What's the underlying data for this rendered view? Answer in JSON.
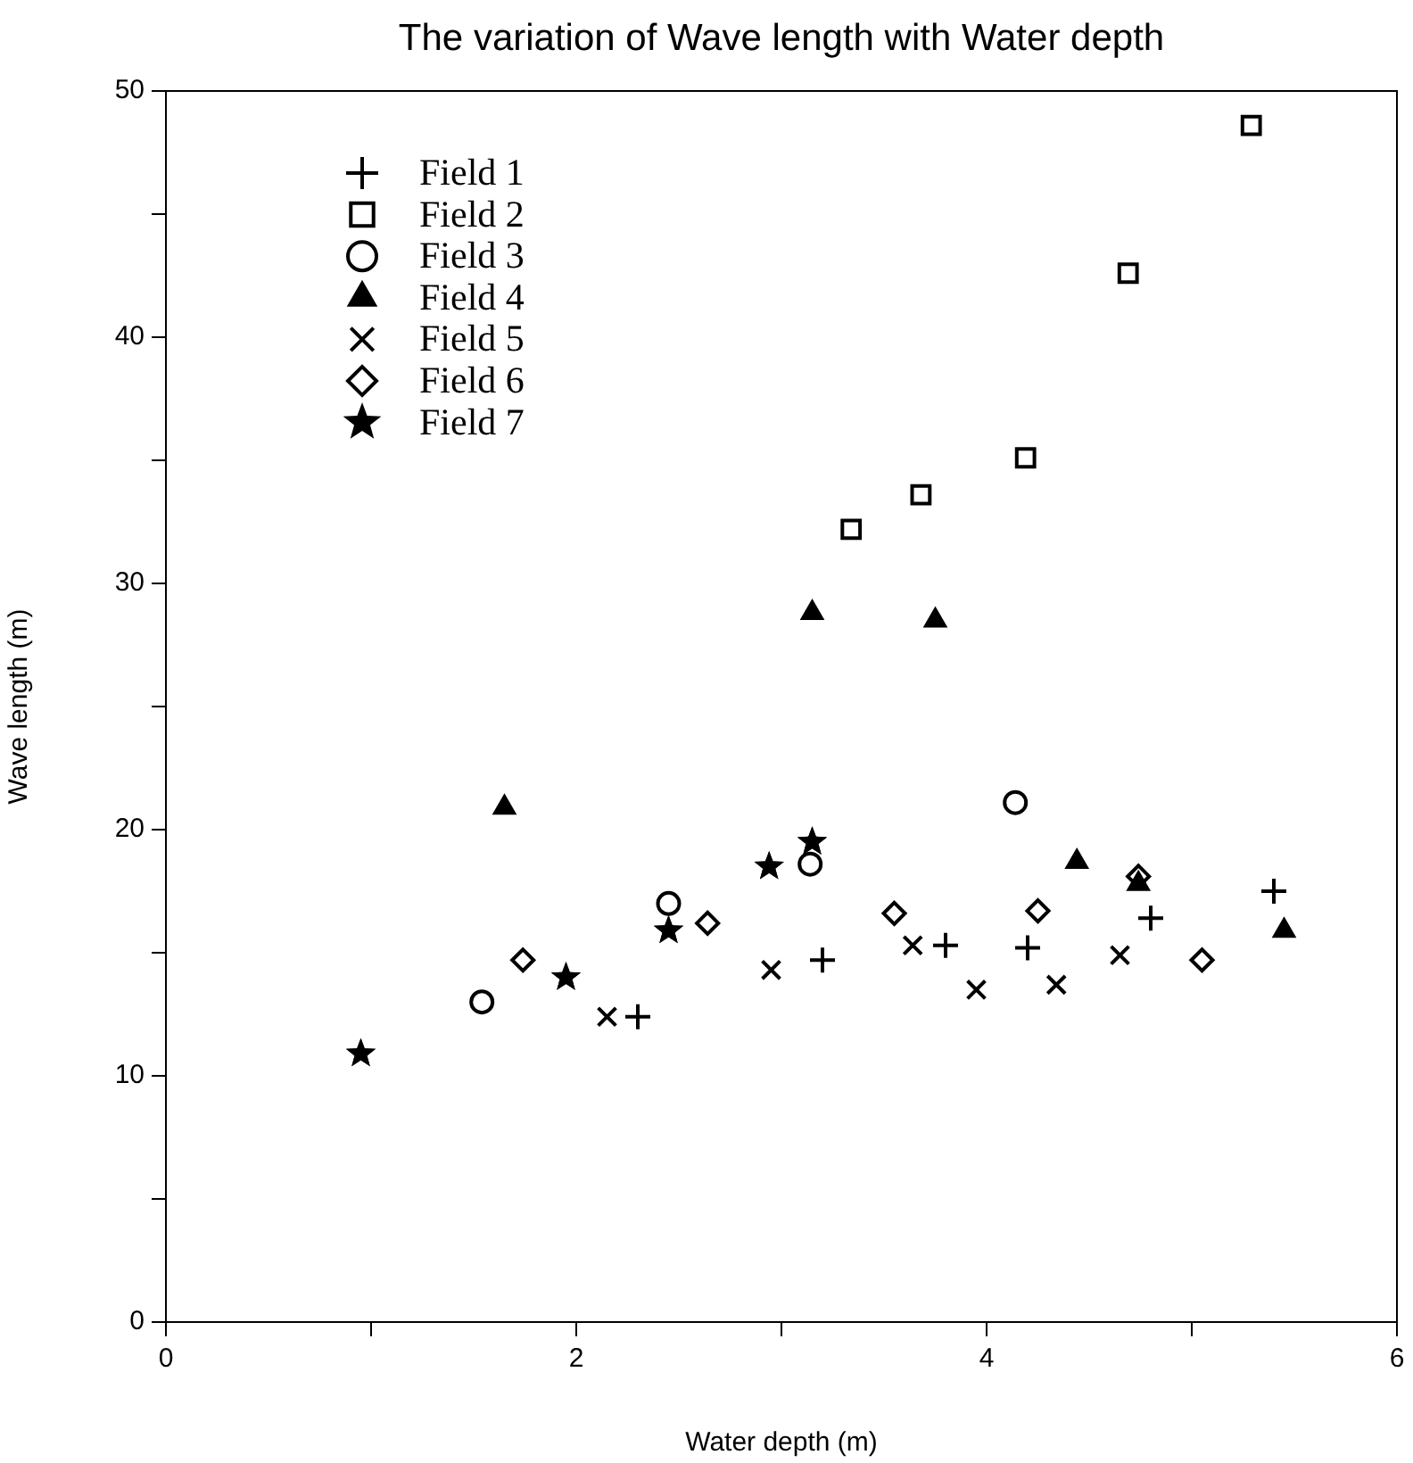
{
  "chart_data": {
    "type": "scatter",
    "title": "The variation of Wave length with Water depth",
    "xlabel": "Water depth (m)",
    "ylabel": "Wave length (m)",
    "xlim": [
      0,
      6
    ],
    "xticks": [
      0,
      {
        "value": 1,
        "label": null
      },
      2,
      {
        "value": 3,
        "label": null
      },
      4,
      {
        "value": 5,
        "label": null
      },
      6
    ],
    "ylim": [
      0,
      50
    ],
    "yticks": [
      0,
      {
        "value": 5,
        "label": null
      },
      10,
      {
        "value": 15,
        "label": null
      },
      20,
      {
        "value": 25,
        "label": null
      },
      30,
      {
        "value": 35,
        "label": null
      },
      40,
      {
        "value": 45,
        "label": null
      },
      50
    ],
    "grid": false,
    "legend": "top left",
    "series": [
      {
        "name": "Field 1",
        "color": "#000000",
        "marker": "plus",
        "x": [
          2.3,
          3.2,
          3.8,
          4.2,
          4.8,
          5.4
        ],
        "values": [
          12.4,
          14.7,
          15.3,
          15.2,
          16.4,
          17.5
        ]
      },
      {
        "name": "Field 2",
        "color": "#000000",
        "marker": "square",
        "x": [
          3.34,
          3.68,
          4.19,
          4.69,
          5.29
        ],
        "values": [
          32.2,
          33.6,
          35.1,
          42.6,
          48.6
        ]
      },
      {
        "name": "Field 3",
        "color": "#000000",
        "marker": "circle",
        "x": [
          1.54,
          2.45,
          3.14,
          4.14
        ],
        "values": [
          13.0,
          17.0,
          18.6,
          21.1
        ]
      },
      {
        "name": "Field 4",
        "color": "#000000",
        "marker": "triangle",
        "x": [
          1.65,
          3.15,
          3.75,
          4.44,
          4.74,
          5.45
        ],
        "values": [
          20.9,
          28.8,
          28.5,
          18.7,
          17.8,
          15.9
        ]
      },
      {
        "name": "Field 5",
        "color": "#000000",
        "marker": "cross",
        "x": [
          2.15,
          2.95,
          3.64,
          3.95,
          4.34,
          4.65
        ],
        "values": [
          12.4,
          14.3,
          15.3,
          13.5,
          13.7,
          14.9
        ]
      },
      {
        "name": "Field 6",
        "color": "#000000",
        "marker": "diamond",
        "x": [
          1.74,
          2.64,
          3.55,
          4.25,
          4.74,
          5.05
        ],
        "values": [
          14.7,
          16.2,
          16.6,
          16.7,
          18.1,
          14.7
        ]
      },
      {
        "name": "Field 7",
        "color": "#000000",
        "marker": "star",
        "x": [
          0.95,
          1.95,
          2.45,
          2.94,
          3.15
        ],
        "values": [
          10.9,
          14.0,
          15.9,
          18.5,
          19.5
        ]
      }
    ]
  }
}
